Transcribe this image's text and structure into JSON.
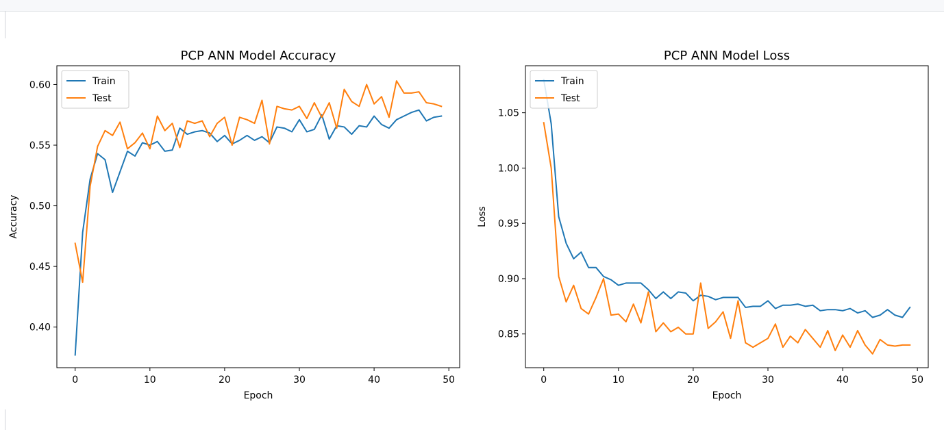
{
  "chart_data": [
    {
      "type": "line",
      "title": "PCP ANN Model Accuracy",
      "xlabel": "Epoch",
      "ylabel": "Accuracy",
      "xlim": [
        -2.45,
        51.45
      ],
      "ylim": [
        0.3665,
        0.6155
      ],
      "xticks": [
        0,
        10,
        20,
        30,
        40,
        50
      ],
      "yticks": [
        0.4,
        0.45,
        0.5,
        0.55,
        0.6
      ],
      "ytick_labels": [
        "0.40",
        "0.45",
        "0.50",
        "0.55",
        "0.60"
      ],
      "legend_placement": "top-left",
      "grid": false,
      "series": [
        {
          "name": "Train",
          "color": "#1f77b4",
          "values": [
            0.377,
            0.478,
            0.522,
            0.543,
            0.538,
            0.511,
            0.528,
            0.545,
            0.541,
            0.552,
            0.55,
            0.553,
            0.545,
            0.546,
            0.564,
            0.559,
            0.561,
            0.562,
            0.56,
            0.553,
            0.558,
            0.551,
            0.554,
            0.558,
            0.554,
            0.557,
            0.552,
            0.565,
            0.564,
            0.561,
            0.571,
            0.561,
            0.563,
            0.575,
            0.555,
            0.566,
            0.565,
            0.559,
            0.566,
            0.565,
            0.574,
            0.567,
            0.564,
            0.571,
            0.574,
            0.577,
            0.579,
            0.57,
            0.573,
            0.574
          ]
        },
        {
          "name": "Test",
          "color": "#ff7f0e",
          "values": [
            0.469,
            0.437,
            0.516,
            0.549,
            0.562,
            0.558,
            0.569,
            0.547,
            0.552,
            0.56,
            0.547,
            0.574,
            0.562,
            0.568,
            0.548,
            0.57,
            0.568,
            0.57,
            0.557,
            0.568,
            0.573,
            0.55,
            0.573,
            0.571,
            0.568,
            0.587,
            0.551,
            0.582,
            0.58,
            0.579,
            0.582,
            0.572,
            0.585,
            0.573,
            0.585,
            0.564,
            0.596,
            0.586,
            0.582,
            0.6,
            0.584,
            0.59,
            0.573,
            0.603,
            0.593,
            0.593,
            0.594,
            0.585,
            0.584,
            0.582
          ]
        }
      ]
    },
    {
      "type": "line",
      "title": "PCP ANN Model Loss",
      "xlabel": "Epoch",
      "ylabel": "Loss",
      "xlim": [
        -2.45,
        51.45
      ],
      "ylim": [
        0.8195,
        1.0925
      ],
      "xticks": [
        0,
        10,
        20,
        30,
        40,
        50
      ],
      "yticks": [
        0.85,
        0.9,
        0.95,
        1.0,
        1.05
      ],
      "ytick_labels": [
        "0.85",
        "0.90",
        "0.95",
        "1.00",
        "1.05"
      ],
      "legend_placement": "top-left",
      "grid": false,
      "series": [
        {
          "name": "Train",
          "color": "#1f77b4",
          "values": [
            1.08,
            1.04,
            0.956,
            0.932,
            0.918,
            0.924,
            0.91,
            0.91,
            0.902,
            0.899,
            0.894,
            0.896,
            0.896,
            0.896,
            0.89,
            0.882,
            0.888,
            0.882,
            0.888,
            0.887,
            0.88,
            0.885,
            0.884,
            0.881,
            0.883,
            0.883,
            0.883,
            0.874,
            0.875,
            0.875,
            0.88,
            0.873,
            0.876,
            0.876,
            0.877,
            0.875,
            0.876,
            0.871,
            0.872,
            0.872,
            0.871,
            0.873,
            0.869,
            0.871,
            0.865,
            0.867,
            0.872,
            0.867,
            0.865,
            0.874
          ]
        },
        {
          "name": "Test",
          "color": "#ff7f0e",
          "values": [
            1.041,
            1.0,
            0.902,
            0.879,
            0.894,
            0.873,
            0.868,
            0.883,
            0.9,
            0.867,
            0.868,
            0.861,
            0.877,
            0.86,
            0.888,
            0.852,
            0.86,
            0.852,
            0.856,
            0.85,
            0.85,
            0.896,
            0.855,
            0.861,
            0.87,
            0.846,
            0.88,
            0.842,
            0.838,
            0.842,
            0.846,
            0.859,
            0.838,
            0.848,
            0.842,
            0.854,
            0.846,
            0.838,
            0.853,
            0.835,
            0.849,
            0.838,
            0.853,
            0.84,
            0.832,
            0.845,
            0.84,
            0.839,
            0.84,
            0.84
          ]
        }
      ]
    }
  ]
}
